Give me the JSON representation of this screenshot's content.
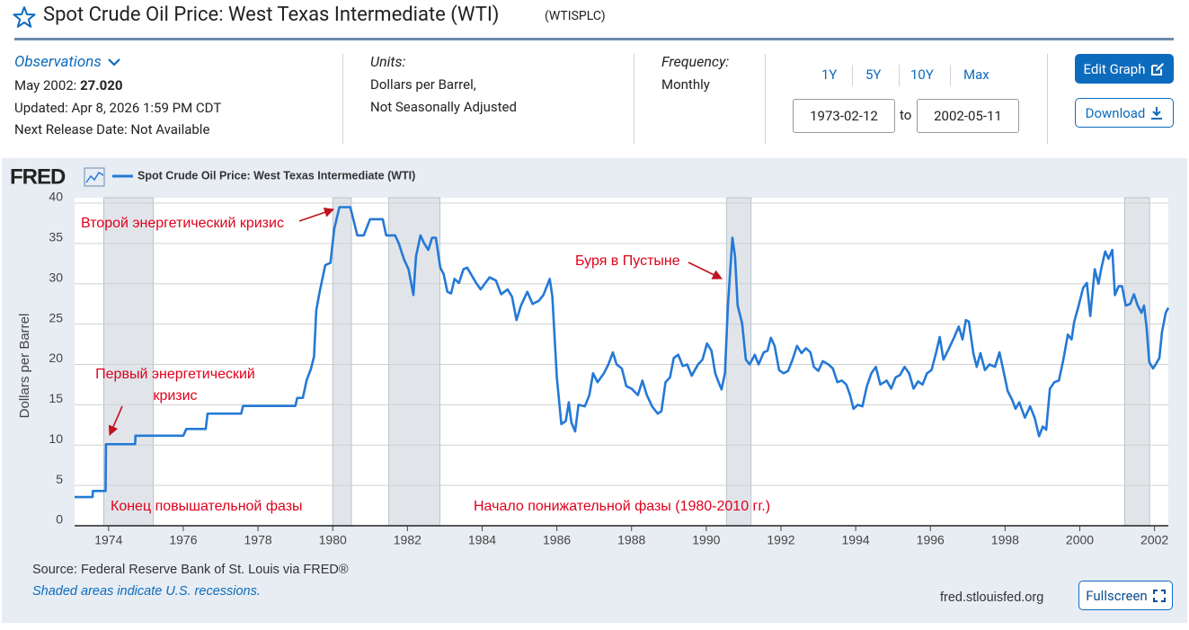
{
  "header": {
    "title": "Spot Crude Oil Price: West Texas Intermediate (WTI)",
    "series_id": "(WTISPLC)"
  },
  "observations": {
    "label": "Observations",
    "period": "May 2002:",
    "value": "27.020",
    "updated": "Updated: Apr 8, 2026 1:59 PM CDT",
    "next_release": "Next Release Date: Not Available"
  },
  "units": {
    "label": "Units:",
    "lines": [
      "Dollars per Barrel,",
      "Not Seasonally Adjusted"
    ]
  },
  "frequency": {
    "label": "Frequency:",
    "value": "Monthly"
  },
  "range_buttons": [
    "1Y",
    "5Y",
    "10Y",
    "Max"
  ],
  "date_range": {
    "start": "1973-02-12",
    "separator": "to",
    "end": "2002-05-11"
  },
  "buttons": {
    "edit": "Edit Graph",
    "download": "Download",
    "fullscreen": "Fullscreen"
  },
  "chart_data": {
    "type": "line",
    "logo": "FRED",
    "ylabel": "Dollars per Barrel",
    "grid": true,
    "xlim": [
      1973.09,
      2002.37
    ],
    "xticks": [
      1974,
      1976,
      1978,
      1980,
      1982,
      1984,
      1986,
      1988,
      1990,
      1992,
      1994,
      1996,
      1998,
      2000,
      2002
    ],
    "ylim": [
      0,
      40
    ],
    "yticks": [
      0,
      5,
      10,
      15,
      20,
      25,
      30,
      35,
      40
    ],
    "recessions": [
      [
        1973.87,
        1975.2
      ],
      [
        1980.0,
        1980.5
      ],
      [
        1981.5,
        1982.87
      ],
      [
        1990.54,
        1991.2
      ],
      [
        2001.2,
        2001.87
      ]
    ],
    "recession_color": "#e1e5ea",
    "annotation_color": "#e0001b",
    "annotations": [
      {
        "lines": [
          "Второй энергетический кризис"
        ]
      },
      {
        "lines": [
          "Буря в Пустыне"
        ]
      },
      {
        "lines": [
          "Первый энергетический",
          "кризис"
        ]
      },
      {
        "lines": [
          "Конец повышательной фазы"
        ]
      },
      {
        "lines": [
          "Начало понижательной фазы (1980-2010 гг.)"
        ]
      }
    ],
    "x": [
      1973.09,
      1973.57,
      1973.58,
      1973.92,
      1973.93,
      1974.71,
      1974.72,
      1976.0,
      1976.08,
      1976.6,
      1976.65,
      1977.55,
      1977.6,
      1979.0,
      1979.05,
      1979.2,
      1979.3,
      1979.42,
      1979.5,
      1979.56,
      1979.65,
      1979.8,
      1979.94,
      1980.04,
      1980.18,
      1980.47,
      1980.66,
      1980.83,
      1981.0,
      1981.34,
      1981.43,
      1981.67,
      1981.77,
      1981.91,
      1982.03,
      1982.16,
      1982.23,
      1982.35,
      1982.45,
      1982.56,
      1982.66,
      1982.76,
      1982.88,
      1982.97,
      1983.07,
      1983.17,
      1983.26,
      1983.38,
      1983.5,
      1983.6,
      1983.84,
      1983.96,
      1984.2,
      1984.37,
      1984.51,
      1984.68,
      1984.8,
      1984.92,
      1985.04,
      1985.21,
      1985.35,
      1985.52,
      1985.64,
      1985.81,
      1985.88,
      1986.0,
      1986.12,
      1986.24,
      1986.32,
      1986.39,
      1986.49,
      1986.58,
      1986.75,
      1986.87,
      1986.97,
      1987.09,
      1987.26,
      1987.38,
      1987.5,
      1987.6,
      1987.74,
      1987.86,
      1988.0,
      1988.17,
      1988.29,
      1988.41,
      1988.55,
      1988.7,
      1988.8,
      1988.91,
      1989.03,
      1989.13,
      1989.25,
      1989.37,
      1989.49,
      1989.61,
      1989.78,
      1989.9,
      1990.02,
      1990.14,
      1990.24,
      1990.33,
      1990.41,
      1990.5,
      1990.58,
      1990.7,
      1990.77,
      1990.84,
      1990.96,
      1991.06,
      1991.16,
      1991.3,
      1991.4,
      1991.54,
      1991.64,
      1991.73,
      1991.83,
      1991.95,
      1992.07,
      1992.19,
      1992.31,
      1992.43,
      1992.55,
      1992.67,
      1992.79,
      1992.88,
      1993.0,
      1993.12,
      1993.27,
      1993.39,
      1993.51,
      1993.63,
      1993.75,
      1993.85,
      1993.94,
      1994.06,
      1994.18,
      1994.3,
      1994.42,
      1994.54,
      1994.66,
      1994.83,
      1994.95,
      1995.07,
      1995.19,
      1995.31,
      1995.43,
      1995.55,
      1995.67,
      1995.79,
      1995.91,
      1996.03,
      1996.15,
      1996.25,
      1996.35,
      1996.5,
      1996.64,
      1996.76,
      1996.86,
      1996.95,
      1997.03,
      1997.15,
      1997.24,
      1997.34,
      1997.46,
      1997.58,
      1997.73,
      1997.85,
      1997.97,
      1998.07,
      1998.19,
      1998.28,
      1998.38,
      1998.53,
      1998.67,
      1998.79,
      1998.91,
      1999.01,
      1999.1,
      1999.2,
      1999.32,
      1999.44,
      1999.56,
      1999.68,
      1999.78,
      1999.85,
      1999.97,
      2000.09,
      2000.19,
      2000.28,
      2000.4,
      2000.5,
      2000.58,
      2000.68,
      2000.77,
      2000.87,
      2000.94,
      2001.04,
      2001.13,
      2001.23,
      2001.35,
      2001.45,
      2001.55,
      2001.65,
      2001.72,
      2001.79,
      2001.86,
      2001.96,
      2002.03,
      2002.13,
      2002.2,
      2002.3,
      2002.37
    ],
    "series": [
      {
        "name": "Spot Crude Oil Price: West Texas Intermediate (WTI)",
        "color": "#2479d6",
        "values": [
          3.56,
          3.56,
          4.31,
          4.31,
          10.11,
          10.11,
          11.16,
          11.16,
          12.0,
          12.0,
          13.9,
          13.9,
          14.85,
          14.85,
          15.85,
          15.85,
          18.0,
          19.5,
          21.0,
          26.7,
          29.0,
          32.3,
          32.6,
          36.8,
          39.5,
          39.5,
          36.0,
          36.0,
          38.0,
          38.0,
          36.0,
          36.0,
          35.0,
          33.0,
          31.8,
          28.6,
          33.4,
          36.0,
          35.0,
          34.2,
          35.7,
          35.7,
          32.0,
          31.2,
          29.0,
          28.8,
          30.6,
          30.1,
          31.8,
          32.0,
          30.1,
          29.3,
          30.8,
          30.4,
          28.7,
          29.3,
          28.4,
          25.5,
          27.3,
          29.0,
          27.5,
          27.9,
          28.6,
          30.6,
          28.4,
          18.4,
          12.6,
          13.0,
          15.3,
          12.8,
          11.7,
          15.0,
          14.8,
          16.2,
          18.9,
          17.8,
          18.9,
          20.0,
          21.5,
          20.0,
          19.5,
          17.3,
          17.0,
          16.2,
          18.0,
          16.2,
          14.8,
          13.9,
          14.2,
          17.8,
          18.4,
          20.8,
          21.2,
          19.8,
          20.0,
          18.6,
          20.0,
          20.6,
          22.6,
          21.7,
          18.9,
          17.8,
          16.9,
          18.9,
          27.3,
          35.7,
          33.4,
          27.3,
          25.1,
          20.6,
          20.0,
          21.2,
          20.0,
          21.5,
          21.7,
          23.3,
          22.3,
          19.3,
          18.9,
          19.2,
          20.6,
          22.3,
          21.4,
          22.0,
          21.5,
          19.7,
          19.2,
          20.4,
          20.0,
          19.5,
          17.8,
          18.0,
          17.5,
          16.2,
          14.5,
          15.0,
          14.8,
          17.3,
          18.9,
          19.7,
          17.5,
          18.0,
          17.0,
          18.4,
          18.7,
          19.7,
          18.9,
          17.0,
          17.9,
          17.5,
          18.9,
          19.3,
          21.4,
          23.4,
          20.6,
          22.0,
          23.4,
          24.7,
          23.1,
          25.5,
          25.3,
          21.4,
          19.7,
          21.4,
          19.3,
          20.0,
          19.7,
          21.5,
          18.9,
          16.7,
          15.6,
          14.5,
          15.3,
          13.4,
          14.8,
          13.4,
          11.1,
          12.3,
          11.9,
          17.0,
          17.8,
          18.0,
          20.6,
          23.7,
          23.1,
          25.3,
          27.3,
          29.5,
          30.1,
          26.0,
          31.8,
          30.0,
          32.0,
          34.0,
          33.1,
          34.2,
          28.6,
          29.7,
          29.7,
          27.3,
          27.5,
          28.7,
          27.3,
          26.4,
          27.3,
          24.5,
          20.3,
          19.5,
          20.0,
          20.8,
          24.0,
          26.4,
          27.02
        ]
      }
    ]
  },
  "footer": {
    "source": "Source: Federal Reserve Bank of St. Louis via FRED®",
    "note": "Shaded areas indicate U.S. recessions.",
    "site": "fred.stlouisfed.org"
  }
}
